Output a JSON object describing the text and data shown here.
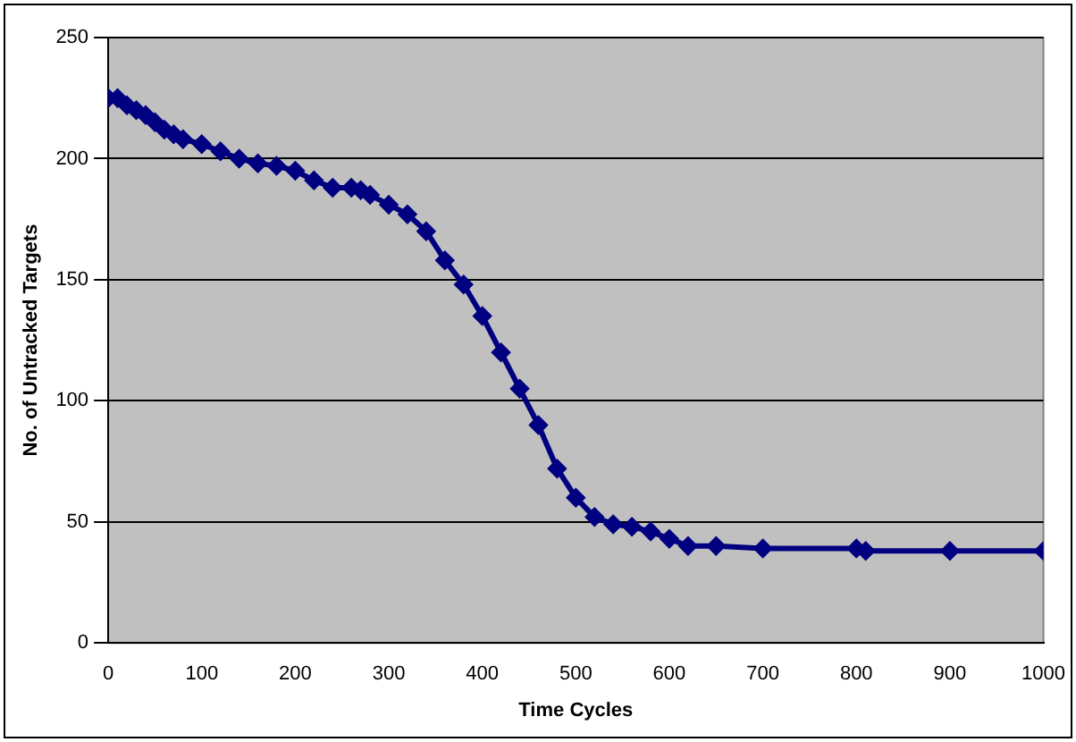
{
  "chart_data": {
    "type": "line",
    "xlabel": "Time Cycles",
    "ylabel": "No. of Untracked Targets",
    "x": [
      0,
      10,
      20,
      30,
      40,
      50,
      60,
      70,
      80,
      100,
      120,
      140,
      160,
      180,
      200,
      220,
      240,
      260,
      270,
      280,
      300,
      320,
      340,
      360,
      380,
      400,
      420,
      440,
      460,
      480,
      500,
      520,
      540,
      560,
      580,
      600,
      620,
      650,
      700,
      800,
      810,
      900,
      1000
    ],
    "series": [
      {
        "color": "#000080",
        "values": [
          225,
          225,
          222,
          220,
          218,
          215,
          212,
          210,
          208,
          206,
          203,
          200,
          198,
          197,
          195,
          191,
          188,
          188,
          187,
          185,
          181,
          177,
          170,
          158,
          148,
          135,
          120,
          105,
          90,
          72,
          60,
          52,
          49,
          48,
          46,
          43,
          40,
          40,
          39,
          39,
          38,
          38,
          38
        ]
      }
    ],
    "xlim": [
      0,
      1000
    ],
    "xticks": [
      0,
      100,
      200,
      300,
      400,
      500,
      600,
      700,
      800,
      900,
      1000
    ],
    "ylim": [
      0,
      250
    ],
    "yticks": [
      0,
      50,
      100,
      150,
      200,
      250
    ],
    "grid": "y",
    "legend": false,
    "marker": "diamond",
    "line_style": "solid"
  }
}
